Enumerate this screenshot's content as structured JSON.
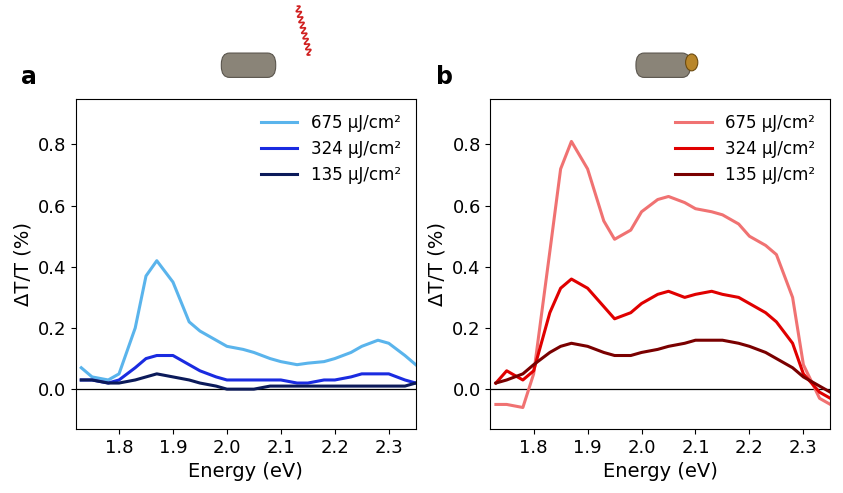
{
  "chart_data": [
    {
      "type": "line",
      "panel_label": "a",
      "x_label": "Energy (eV)",
      "y_label": "ΔT/T (%)",
      "xlim": [
        1.72,
        2.35
      ],
      "xticks": [
        1.8,
        1.9,
        2.0,
        2.1,
        2.2,
        2.3
      ],
      "ylim": [
        -0.13,
        0.95
      ],
      "yticks": [
        0.0,
        0.2,
        0.4,
        0.6,
        0.8
      ],
      "hlines": [
        0
      ],
      "legend": "upper right",
      "x": [
        1.73,
        1.75,
        1.78,
        1.8,
        1.83,
        1.85,
        1.87,
        1.9,
        1.93,
        1.95,
        1.98,
        2.0,
        2.03,
        2.05,
        2.08,
        2.1,
        2.13,
        2.15,
        2.18,
        2.2,
        2.23,
        2.25,
        2.28,
        2.3,
        2.33,
        2.35
      ],
      "series": [
        {
          "name": "675 μJ/cm²",
          "color": "#5ab4ec",
          "values": [
            0.07,
            0.04,
            0.03,
            0.05,
            0.2,
            0.37,
            0.42,
            0.35,
            0.22,
            0.19,
            0.16,
            0.14,
            0.13,
            0.12,
            0.1,
            0.09,
            0.08,
            0.085,
            0.09,
            0.1,
            0.12,
            0.14,
            0.16,
            0.15,
            0.11,
            0.08
          ]
        },
        {
          "name": "324 μJ/cm²",
          "color": "#1a2be0",
          "values": [
            0.03,
            0.03,
            0.02,
            0.03,
            0.07,
            0.1,
            0.11,
            0.11,
            0.08,
            0.06,
            0.04,
            0.03,
            0.03,
            0.03,
            0.03,
            0.03,
            0.02,
            0.02,
            0.03,
            0.03,
            0.04,
            0.05,
            0.05,
            0.05,
            0.03,
            0.02
          ]
        },
        {
          "name": "135 μJ/cm²",
          "color": "#0b1a5a",
          "values": [
            0.03,
            0.03,
            0.02,
            0.02,
            0.03,
            0.04,
            0.05,
            0.04,
            0.03,
            0.02,
            0.01,
            0.0,
            0.0,
            0.0,
            0.01,
            0.01,
            0.01,
            0.01,
            0.01,
            0.01,
            0.01,
            0.01,
            0.01,
            0.01,
            0.01,
            0.02
          ]
        }
      ]
    },
    {
      "type": "line",
      "panel_label": "b",
      "x_label": "Energy (eV)",
      "y_label": "ΔT/T (%)",
      "xlim": [
        1.72,
        2.35
      ],
      "xticks": [
        1.8,
        1.9,
        2.0,
        2.1,
        2.2,
        2.3
      ],
      "ylim": [
        -0.13,
        0.95
      ],
      "yticks": [
        0.0,
        0.2,
        0.4,
        0.6,
        0.8
      ],
      "hlines": [
        0
      ],
      "legend": "upper right",
      "x": [
        1.73,
        1.75,
        1.78,
        1.8,
        1.83,
        1.85,
        1.87,
        1.9,
        1.93,
        1.95,
        1.98,
        2.0,
        2.03,
        2.05,
        2.08,
        2.1,
        2.13,
        2.15,
        2.18,
        2.2,
        2.23,
        2.25,
        2.28,
        2.3,
        2.33,
        2.35
      ],
      "series": [
        {
          "name": "675 μJ/cm²",
          "color": "#f07272",
          "values": [
            -0.05,
            -0.05,
            -0.06,
            0.05,
            0.45,
            0.72,
            0.81,
            0.72,
            0.55,
            0.49,
            0.52,
            0.58,
            0.62,
            0.63,
            0.61,
            0.59,
            0.58,
            0.57,
            0.54,
            0.5,
            0.47,
            0.44,
            0.3,
            0.08,
            -0.03,
            -0.05
          ]
        },
        {
          "name": "324 μJ/cm²",
          "color": "#e00000",
          "values": [
            0.02,
            0.06,
            0.03,
            0.06,
            0.25,
            0.33,
            0.36,
            0.33,
            0.27,
            0.23,
            0.25,
            0.28,
            0.31,
            0.32,
            0.3,
            0.31,
            0.32,
            0.31,
            0.3,
            0.28,
            0.25,
            0.22,
            0.15,
            0.05,
            -0.01,
            -0.03
          ]
        },
        {
          "name": "135 μJ/cm²",
          "color": "#7a0000",
          "values": [
            0.02,
            0.03,
            0.05,
            0.08,
            0.12,
            0.14,
            0.15,
            0.14,
            0.12,
            0.11,
            0.11,
            0.12,
            0.13,
            0.14,
            0.15,
            0.16,
            0.16,
            0.16,
            0.15,
            0.14,
            0.12,
            0.1,
            0.07,
            0.04,
            0.01,
            -0.01
          ]
        }
      ]
    }
  ]
}
